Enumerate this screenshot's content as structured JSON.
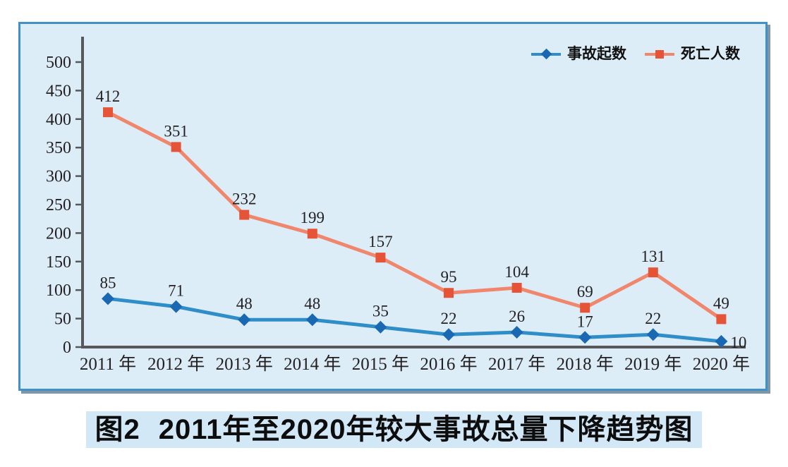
{
  "chart_data": {
    "type": "line",
    "title": "",
    "categories": [
      "2011 年",
      "2012 年",
      "2013 年",
      "2014 年",
      "2015 年",
      "2016 年",
      "2017 年",
      "2018 年",
      "2019 年",
      "2020 年"
    ],
    "series": [
      {
        "name": "事故起数",
        "marker": "diamond",
        "line_color": "#2f8dc8",
        "marker_color": "#1a68b2",
        "values": [
          85,
          71,
          48,
          48,
          35,
          22,
          26,
          17,
          22,
          10
        ]
      },
      {
        "name": "死亡人数",
        "marker": "square",
        "line_color": "#f0876d",
        "marker_color": "#e65437",
        "values": [
          412,
          351,
          232,
          199,
          157,
          95,
          104,
          69,
          131,
          49
        ]
      }
    ],
    "ylim": [
      0,
      500
    ],
    "ytick_interval": 50,
    "yticks": [
      0,
      50,
      100,
      150,
      200,
      250,
      300,
      350,
      400,
      450,
      500
    ],
    "point_labels": true,
    "grid": false,
    "legend_position": "top-right"
  },
  "caption": {
    "figure_label": "图2",
    "title": "2011年至2020年较大事故总量下降趋势图"
  },
  "colors": {
    "panel_background": "#dcedf8",
    "panel_border": "#4291c6",
    "axis": "#57585c",
    "label_text": "#231f20",
    "accidents_line": "#2f8dc8",
    "accidents_marker": "#1a68b2",
    "deaths_line": "#f0876d",
    "deaths_marker": "#e65437",
    "caption_highlight": "#d3e8f7"
  }
}
